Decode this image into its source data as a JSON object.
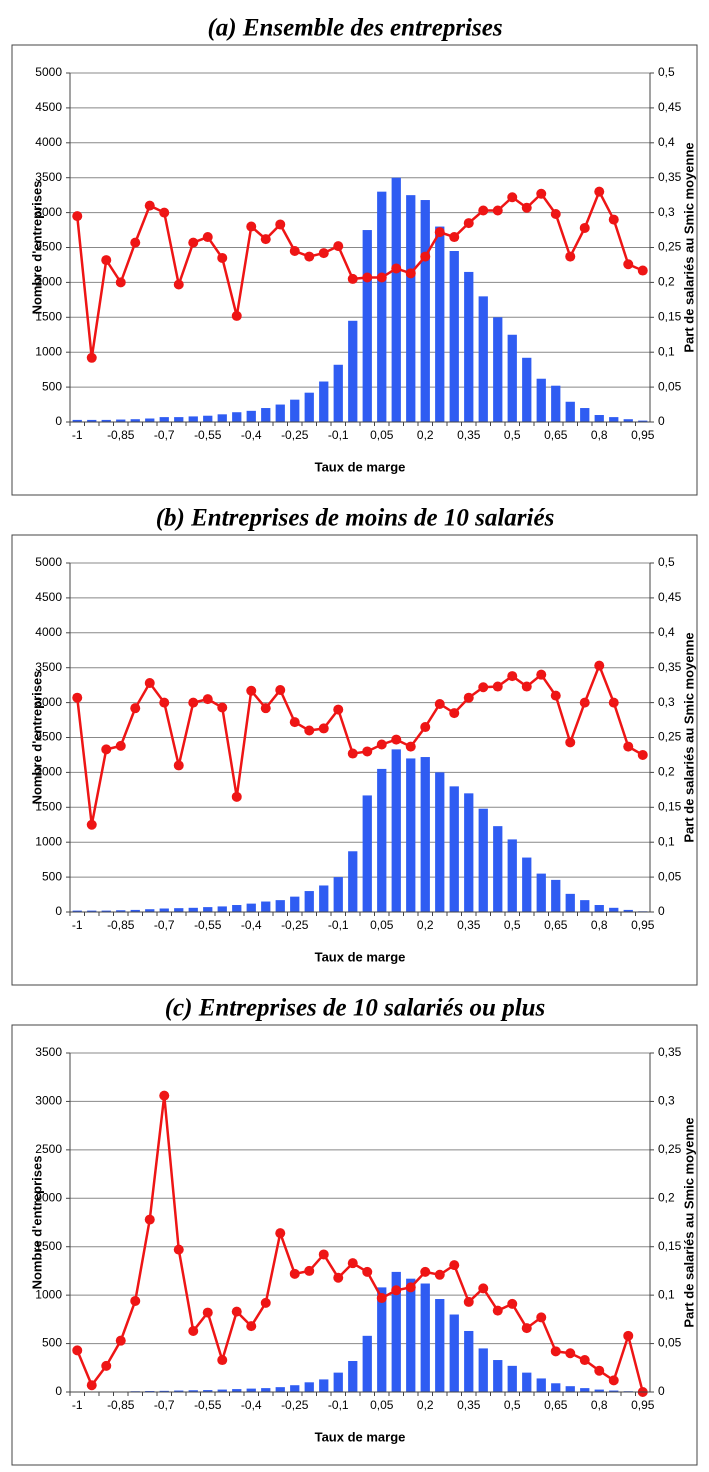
{
  "chart_data": [
    {
      "type": "bar-line",
      "title": "(a) Ensemble des entreprises",
      "x_label": "Taux de marge",
      "y_label": "Nombre d'entreprises",
      "y2_label": "Part de salariés au Smic moyenne",
      "categories": [
        "-1",
        null,
        null,
        "-0,85",
        null,
        null,
        "-0,7",
        null,
        null,
        "-0,55",
        null,
        null,
        "-0,4",
        null,
        null,
        "-0,25",
        null,
        null,
        "-0,1",
        null,
        null,
        "0,05",
        null,
        null,
        "0,2",
        null,
        null,
        "0,35",
        null,
        null,
        "0,5",
        null,
        null,
        "0,65",
        null,
        null,
        "0,8",
        null,
        null,
        "0,95"
      ],
      "series": [
        {
          "name": "Nombre d'entreprises",
          "color": "#2f5cf2",
          "values": [
            30,
            30,
            30,
            35,
            40,
            50,
            70,
            70,
            80,
            90,
            110,
            140,
            160,
            200,
            250,
            320,
            420,
            580,
            820,
            1450,
            2750,
            3300,
            3500,
            3250,
            3180,
            2800,
            2450,
            2150,
            1800,
            1500,
            1250,
            920,
            620,
            520,
            290,
            200,
            100,
            70,
            40,
            20
          ]
        },
        {
          "name": "Part de salariés au Smic moyenne",
          "color": "#ee1515",
          "axis": "y2",
          "values": [
            0.295,
            0.092,
            0.232,
            0.2,
            0.257,
            0.31,
            0.3,
            0.197,
            0.257,
            0.265,
            0.235,
            0.152,
            0.28,
            0.262,
            0.283,
            0.245,
            0.237,
            0.242,
            0.252,
            0.205,
            0.207,
            0.207,
            0.22,
            0.213,
            0.237,
            0.272,
            0.265,
            0.285,
            0.303,
            0.303,
            0.322,
            0.307,
            0.327,
            0.298,
            0.237,
            0.278,
            0.33,
            0.29,
            0.226,
            0.217
          ]
        }
      ],
      "ylim": [
        0,
        5000
      ],
      "yticks": [
        0,
        500,
        1000,
        1500,
        2000,
        2500,
        3000,
        3500,
        4000,
        4500,
        5000
      ],
      "y2lim": [
        0,
        0.5
      ],
      "y2ticks": [
        0,
        {
          "value": 0.05,
          "label": "0,05"
        },
        {
          "value": 0.1,
          "label": "0,1"
        },
        {
          "value": 0.15,
          "label": "0,15"
        },
        {
          "value": 0.2,
          "label": "0,2"
        },
        {
          "value": 0.25,
          "label": "0,25"
        },
        {
          "value": 0.3,
          "label": "0,3"
        },
        {
          "value": 0.35,
          "label": "0,35"
        },
        {
          "value": 0.4,
          "label": "0,4"
        },
        {
          "value": 0.45,
          "label": "0,45"
        },
        {
          "value": 0.5,
          "label": "0,5"
        }
      ],
      "grid": true
    },
    {
      "type": "bar-line",
      "title": "(b) Entreprises de moins de 10 salariés",
      "x_label": "Taux de marge",
      "y_label": "Nombre d'entreprises",
      "y2_label": "Part de salariés au Smic moyenne",
      "categories": [
        "-1",
        null,
        null,
        "-0,85",
        null,
        null,
        "-0,7",
        null,
        null,
        "-0,55",
        null,
        null,
        "-0,4",
        null,
        null,
        "-0,25",
        null,
        null,
        "-0,1",
        null,
        null,
        "0,05",
        null,
        null,
        "0,2",
        null,
        null,
        "0,35",
        null,
        null,
        "0,5",
        null,
        null,
        "0,65",
        null,
        null,
        "0,8",
        null,
        null,
        "0,95"
      ],
      "series": [
        {
          "name": "Nombre d'entreprises",
          "color": "#2f5cf2",
          "values": [
            20,
            20,
            20,
            25,
            30,
            40,
            50,
            55,
            60,
            70,
            80,
            100,
            120,
            150,
            170,
            220,
            300,
            380,
            500,
            870,
            1670,
            2050,
            2330,
            2200,
            2220,
            2000,
            1800,
            1700,
            1480,
            1230,
            1040,
            780,
            550,
            460,
            260,
            170,
            100,
            60,
            30,
            10
          ]
        },
        {
          "name": "Part de salariés au Smic moyenne",
          "color": "#ee1515",
          "axis": "y2",
          "values": [
            0.307,
            0.125,
            0.233,
            0.238,
            0.292,
            0.328,
            0.3,
            0.21,
            0.3,
            0.305,
            0.293,
            0.165,
            0.317,
            0.292,
            0.318,
            0.272,
            0.26,
            0.263,
            0.29,
            0.227,
            0.23,
            0.24,
            0.247,
            0.237,
            0.265,
            0.298,
            0.285,
            0.307,
            0.322,
            0.323,
            0.338,
            0.323,
            0.34,
            0.31,
            0.243,
            0.3,
            0.353,
            0.3,
            0.237,
            0.225
          ]
        }
      ],
      "ylim": [
        0,
        5000
      ],
      "yticks": [
        0,
        500,
        1000,
        1500,
        2000,
        2500,
        3000,
        3500,
        4000,
        4500,
        5000
      ],
      "y2lim": [
        0,
        0.5
      ],
      "y2ticks": [
        0,
        {
          "value": 0.05,
          "label": "0,05"
        },
        {
          "value": 0.1,
          "label": "0,1"
        },
        {
          "value": 0.15,
          "label": "0,15"
        },
        {
          "value": 0.2,
          "label": "0,2"
        },
        {
          "value": 0.25,
          "label": "0,25"
        },
        {
          "value": 0.3,
          "label": "0,3"
        },
        {
          "value": 0.35,
          "label": "0,35"
        },
        {
          "value": 0.4,
          "label": "0,4"
        },
        {
          "value": 0.45,
          "label": "0,45"
        },
        {
          "value": 0.5,
          "label": "0,5"
        }
      ],
      "grid": true
    },
    {
      "type": "bar-line",
      "title": "(c) Entreprises de 10 salariés ou plus",
      "x_label": "Taux de marge",
      "y_label": "Nombre d'entreprises",
      "y2_label": "Part de salariés au Smic moyenne",
      "categories": [
        "-1",
        null,
        null,
        "-0,85",
        null,
        null,
        "-0,7",
        null,
        null,
        "-0,55",
        null,
        null,
        "-0,4",
        null,
        null,
        "-0,25",
        null,
        null,
        "-0,1",
        null,
        null,
        "0,05",
        null,
        null,
        "0,2",
        null,
        null,
        "0,35",
        null,
        null,
        "0,5",
        null,
        null,
        "0,65",
        null,
        null,
        "0,8",
        null,
        null,
        "0,95"
      ],
      "series": [
        {
          "name": "Nombre d'entreprises",
          "color": "#2f5cf2",
          "values": [
            5,
            5,
            5,
            5,
            8,
            10,
            12,
            15,
            18,
            20,
            25,
            30,
            35,
            40,
            50,
            70,
            100,
            130,
            200,
            320,
            580,
            1080,
            1240,
            1170,
            1120,
            960,
            800,
            630,
            450,
            330,
            270,
            200,
            140,
            90,
            60,
            40,
            25,
            15,
            8,
            3
          ]
        },
        {
          "name": "Part de salariés au Smic moyenne",
          "color": "#ee1515",
          "axis": "y2",
          "values": [
            0.043,
            0.007,
            0.027,
            0.053,
            0.094,
            0.178,
            0.306,
            0.147,
            0.063,
            0.082,
            0.033,
            0.083,
            0.068,
            0.092,
            0.164,
            0.122,
            0.125,
            0.142,
            0.118,
            0.133,
            0.124,
            0.097,
            0.105,
            0.108,
            0.124,
            0.121,
            0.131,
            0.093,
            0.107,
            0.084,
            0.091,
            0.066,
            0.077,
            0.042,
            0.04,
            0.033,
            0.022,
            0.012,
            0.058,
            0
          ]
        }
      ],
      "ylim": [
        0,
        3500
      ],
      "yticks": [
        0,
        500,
        1000,
        1500,
        2000,
        2500,
        3000,
        3500
      ],
      "y2lim": [
        0,
        0.35
      ],
      "y2ticks": [
        0,
        {
          "value": 0.05,
          "label": "0,05"
        },
        {
          "value": 0.1,
          "label": "0,1"
        },
        {
          "value": 0.15,
          "label": "0,15"
        },
        {
          "value": 0.2,
          "label": "0,2"
        },
        {
          "value": 0.25,
          "label": "0,25"
        },
        {
          "value": 0.3,
          "label": "0,3"
        },
        {
          "value": 0.35,
          "label": "0,35"
        }
      ],
      "grid": true
    }
  ]
}
